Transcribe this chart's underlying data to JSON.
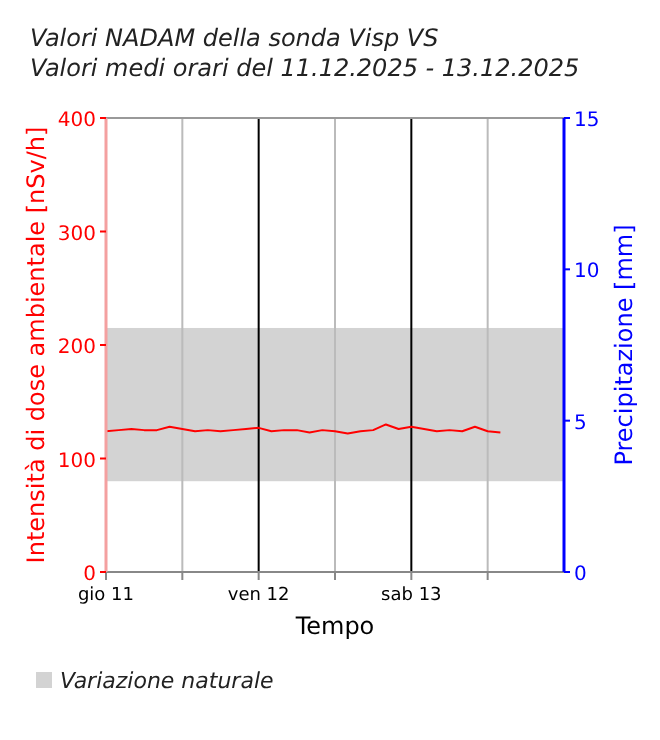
{
  "chart_data": {
    "type": "line",
    "title": "Valori NADAM della sonda Visp VS",
    "subtitle": "Valori medi orari del 11.12.2025 - 13.12.2025",
    "xlabel": "Tempo",
    "ylabel": "Intensità di dose ambientale [nSv/h]",
    "y2label": "Precipitazione [mm]",
    "x": [
      "2025-12-11T00:00",
      "2025-12-11T02:00",
      "2025-12-11T04:00",
      "2025-12-11T06:00",
      "2025-12-11T08:00",
      "2025-12-11T10:00",
      "2025-12-11T12:00",
      "2025-12-11T14:00",
      "2025-12-11T16:00",
      "2025-12-11T18:00",
      "2025-12-11T20:00",
      "2025-12-11T22:00",
      "2025-12-12T00:00",
      "2025-12-12T02:00",
      "2025-12-12T04:00",
      "2025-12-12T06:00",
      "2025-12-12T08:00",
      "2025-12-12T10:00",
      "2025-12-12T12:00",
      "2025-12-12T14:00",
      "2025-12-12T16:00",
      "2025-12-12T18:00",
      "2025-12-12T20:00",
      "2025-12-12T22:00",
      "2025-12-13T00:00",
      "2025-12-13T02:00",
      "2025-12-13T04:00",
      "2025-12-13T06:00",
      "2025-12-13T08:00",
      "2025-12-13T10:00",
      "2025-12-13T12:00",
      "2025-12-13T14:00"
    ],
    "series": [
      {
        "color": "#ff0000",
        "values": [
          124,
          125,
          126,
          125,
          125,
          128,
          126,
          124,
          125,
          124,
          125,
          126,
          127,
          124,
          125,
          125,
          123,
          125,
          124,
          122,
          124,
          125,
          130,
          126,
          128,
          126,
          124,
          125,
          124,
          128,
          124,
          123
        ]
      }
    ],
    "xlim": [
      "2025-12-11T00:00",
      "2025-12-14T00:00"
    ],
    "xticks": [
      {
        "value": "2025-12-11T00:00",
        "label": "gio 11"
      },
      {
        "value": "2025-12-11T12:00",
        "label": null
      },
      {
        "value": "2025-12-12T00:00",
        "label": "ven 12"
      },
      {
        "value": "2025-12-12T12:00",
        "label": null
      },
      {
        "value": "2025-12-13T00:00",
        "label": "sab 13"
      },
      {
        "value": "2025-12-13T12:00",
        "label": null
      }
    ],
    "ylim": [
      0,
      400
    ],
    "yticks": [
      0,
      100,
      200,
      300,
      400
    ],
    "y2lim": [
      0,
      15
    ],
    "y2ticks": [
      0,
      5,
      10,
      15
    ],
    "bands": [
      {
        "axis": "y",
        "from": 80,
        "to": 215,
        "label": "Variazione naturale",
        "color": "#d3d3d3"
      }
    ],
    "grid": "x",
    "legend": "bottom",
    "marker": "none",
    "line_style": "solid"
  }
}
